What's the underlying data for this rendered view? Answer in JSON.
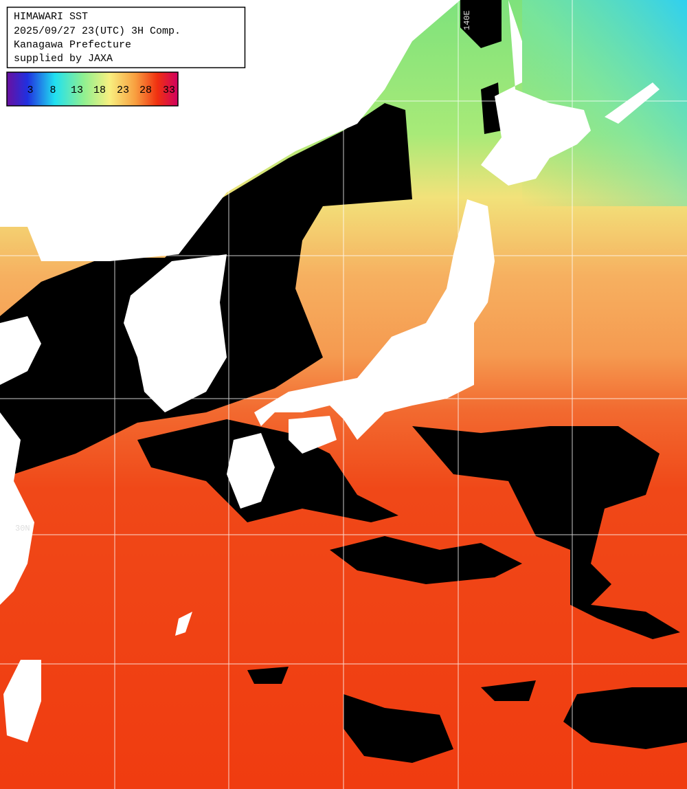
{
  "header": {
    "lines": [
      "HIMAWARI SST",
      "2025/09/27 23(UTC) 3H Comp.",
      "Kanagawa Prefecture",
      "supplied by JAXA"
    ]
  },
  "colorbar": {
    "ticks": [
      3,
      8,
      13,
      18,
      23,
      28,
      33
    ]
  },
  "grid_labels": {
    "lon": "140E",
    "lat": "30N"
  }
}
